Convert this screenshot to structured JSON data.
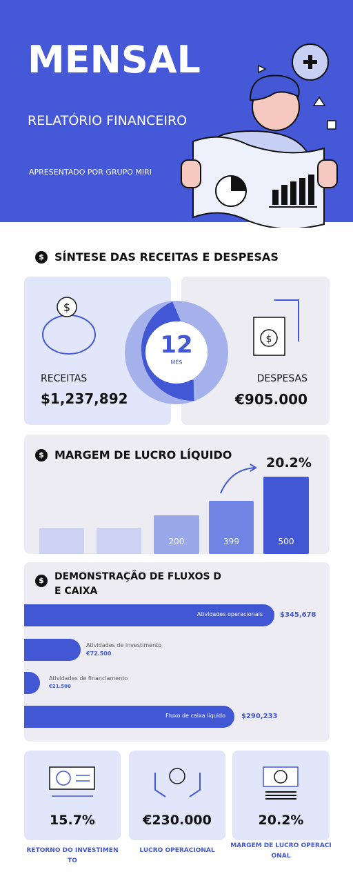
{
  "header": {
    "title": "MENSAL",
    "subtitle": "RELATÓRIO FINANCEIRO",
    "presenter": "APRESENTADO POR GRUPO MIRI"
  },
  "summary": {
    "title": "SÍNTESE DAS RECEITAS E DESPESAS",
    "revenue_label": "RECEITAS",
    "revenue": "$1,237,892",
    "months": "12",
    "months_label": "MÊS",
    "expenses_label": "DESPESAS",
    "expenses": "€905.000"
  },
  "margin": {
    "title": "MARGEM DE LUCRO LÍQUIDO",
    "growth": "20.2%",
    "bar_labels": [
      "200",
      "399",
      "500"
    ]
  },
  "cash_flow": {
    "title": "DEMONSTRAÇÃO DE FLUXOS DE CAIXA",
    "items": [
      {
        "label": "Atividades operacionais",
        "value": "$345,678"
      },
      {
        "label": "Atividades de investimento",
        "value": "€72.500"
      },
      {
        "label": "Atividades de financiamento",
        "value": "€21.500"
      },
      {
        "label": "Fluxo de caixa líquido",
        "value": "$290,233"
      }
    ]
  },
  "kpis": [
    {
      "value": "15.7%",
      "label": "RETORNO DO INVESTIMENTO"
    },
    {
      "value": "€230.000",
      "label": "LUCRO OPERACIONAL"
    },
    {
      "value": "20.2%",
      "label": "MARGEM DE LUCRO OPERACIONAL"
    }
  ]
}
